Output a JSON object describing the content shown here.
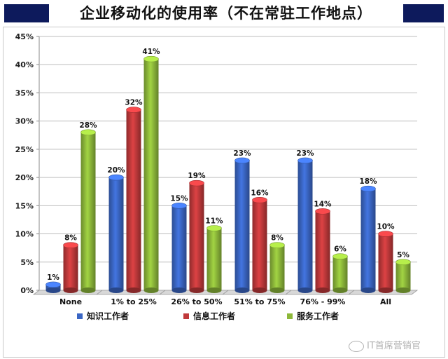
{
  "chart_data": {
    "type": "bar",
    "title": "企业移动化的使用率（不在常驻工作地点）",
    "categories": [
      "None",
      "1% to 25%",
      "26% to 50%",
      "51% to 75%",
      "76% - 99%",
      "All"
    ],
    "series": [
      {
        "name": "知识工作者",
        "color": "#3a66c4",
        "values": [
          1,
          20,
          15,
          23,
          23,
          18
        ]
      },
      {
        "name": "信息工作者",
        "color": "#c0393b",
        "values": [
          8,
          32,
          19,
          16,
          14,
          10
        ]
      },
      {
        "name": "服务工作者",
        "color": "#8db83a",
        "values": [
          28,
          41,
          11,
          8,
          6,
          5
        ]
      }
    ],
    "yticks": [
      "0%",
      "5%",
      "10%",
      "15%",
      "20%",
      "25%",
      "30%",
      "35%",
      "40%",
      "45%"
    ],
    "ylim": [
      0,
      45
    ],
    "value_suffix": "%",
    "legend_position": "bottom",
    "grid": true
  },
  "watermark": "IT首席营销官"
}
